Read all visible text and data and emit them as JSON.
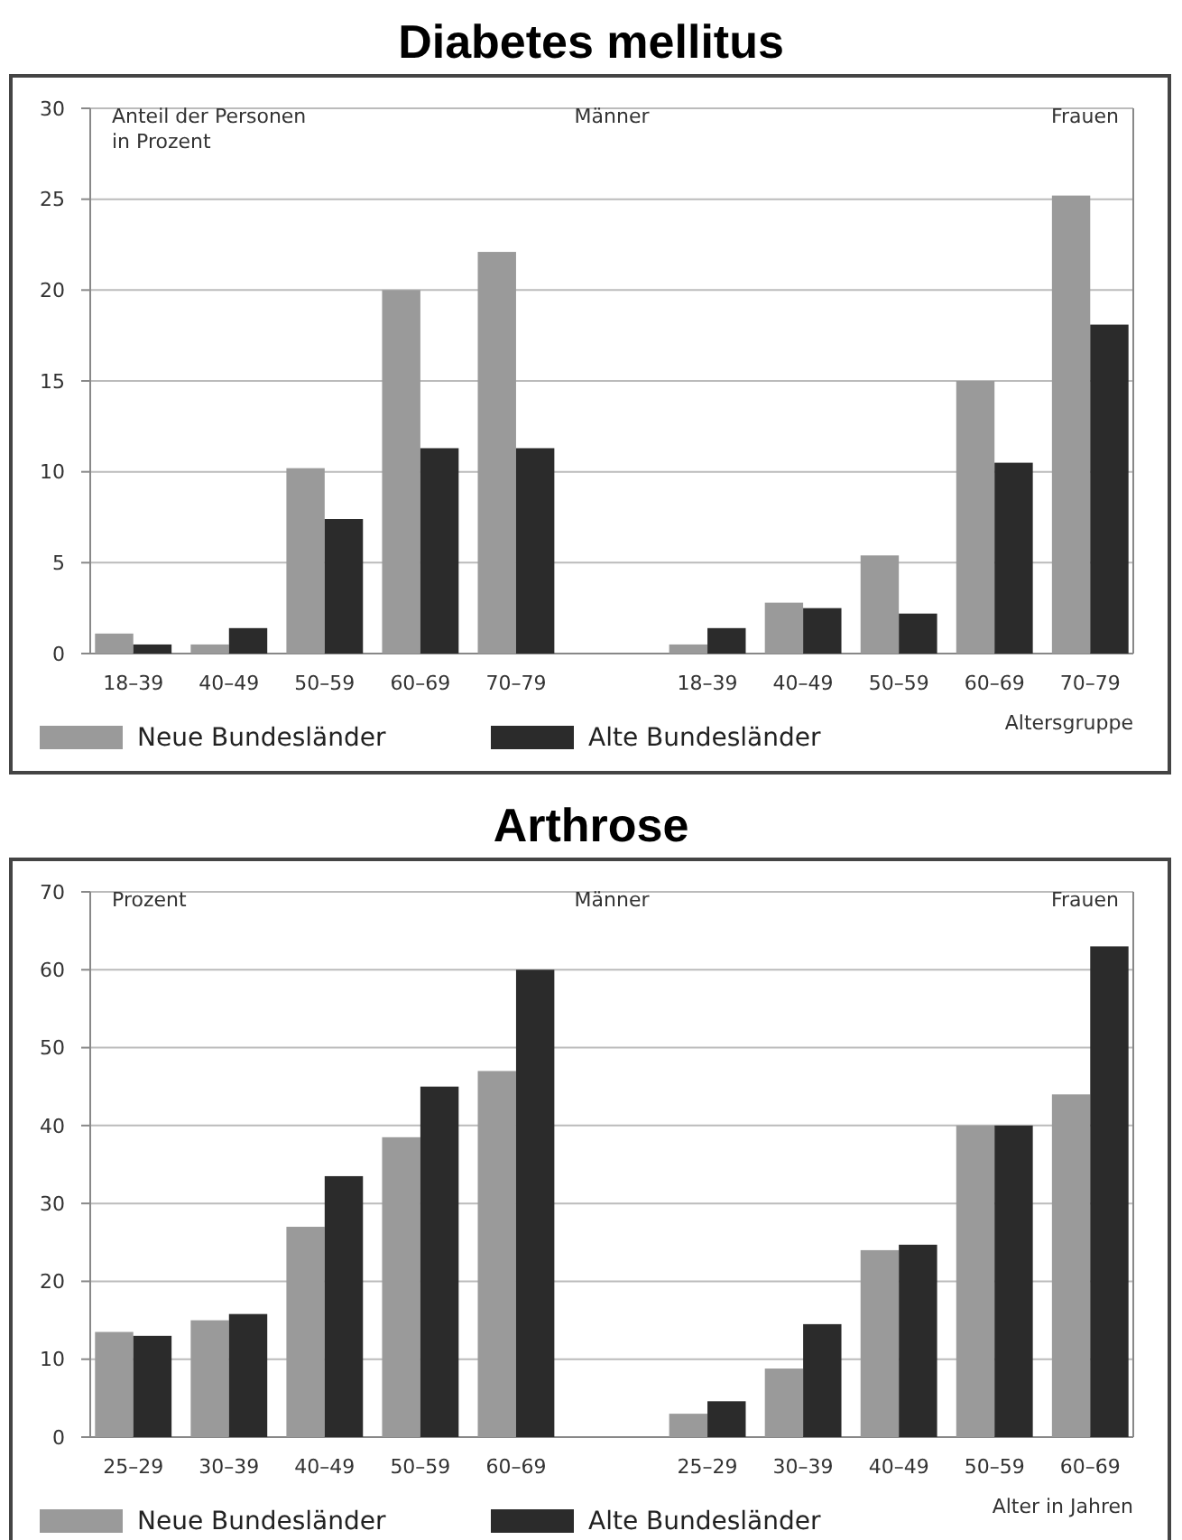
{
  "chart_data": [
    {
      "type": "bar",
      "title": "Diabetes mellitus",
      "ylabel": "Anteil der Personen in Prozent",
      "xlabel": "Altersgruppe",
      "categories": [
        "18–39",
        "40–49",
        "50–59",
        "60–69",
        "70–79",
        null,
        "18–39",
        "40–49",
        "50–59",
        "60–69",
        "70–79"
      ],
      "series": [
        {
          "name": "Neue Bundesländer",
          "color": "#9a9a9a",
          "values": [
            1.1,
            0.5,
            10.2,
            20,
            22.1,
            null,
            0.5,
            2.8,
            5.4,
            15,
            25.2
          ]
        },
        {
          "name": "Alte Bundesländer",
          "color": "#2b2b2b",
          "values": [
            0.5,
            1.4,
            7.4,
            11.3,
            11.3,
            null,
            1.4,
            2.5,
            2.2,
            10.5,
            18.1
          ]
        }
      ],
      "annotations": [
        "Männer",
        "Frauen"
      ],
      "ylim": [
        0,
        30
      ],
      "yticks": [
        0,
        5,
        10,
        15,
        20,
        25,
        30
      ],
      "grid": "y",
      "legend": "bottom left"
    },
    {
      "type": "bar",
      "title": "Arthrose",
      "ylabel": "Prozent",
      "xlabel": "Alter in Jahren",
      "categories": [
        "25–29",
        "30–39",
        "40–49",
        "50–59",
        "60–69",
        null,
        "25–29",
        "30–39",
        "40–49",
        "50–59",
        "60–69"
      ],
      "series": [
        {
          "name": "Neue Bundesländer",
          "color": "#9a9a9a",
          "values": [
            13.5,
            15,
            27,
            38.5,
            47,
            null,
            3,
            8.8,
            24,
            40,
            44
          ]
        },
        {
          "name": "Alte Bundesländer",
          "color": "#2b2b2b",
          "values": [
            13,
            15.8,
            33.5,
            45,
            60,
            null,
            4.6,
            14.5,
            24.7,
            40,
            63
          ]
        }
      ],
      "annotations": [
        "Männer",
        "Frauen"
      ],
      "ylim": [
        0,
        70
      ],
      "yticks": [
        0,
        10,
        20,
        30,
        40,
        50,
        60,
        70
      ],
      "grid": "y",
      "legend": "bottom left"
    }
  ]
}
